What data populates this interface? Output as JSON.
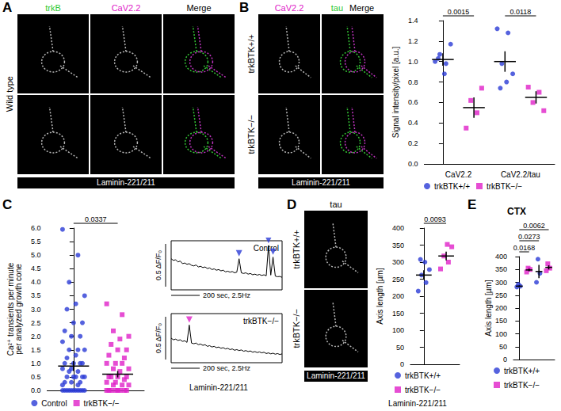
{
  "panels": {
    "A": {
      "letter": "A",
      "row_label": "Wild type",
      "headers": [
        {
          "text": "trkB",
          "color": "#2fc92f",
          "column": 0
        },
        {
          "text": "CaV2.2",
          "color": "#e020c8",
          "column": 1
        },
        {
          "text": "Merge",
          "color": "#000000",
          "column": 2
        }
      ],
      "substrate": "Laminin-221/211"
    },
    "B": {
      "letter": "B",
      "row_labels": [
        "trkBTK+/+",
        "trkBTK−/−"
      ],
      "headers": [
        {
          "text": "CaV2.2",
          "color": "#e020c8",
          "column": 0
        },
        {
          "text": "tau",
          "color": "#2fc92f",
          "column": 1
        },
        {
          "text": "Merge",
          "color": "#000000",
          "column": 1
        }
      ],
      "substrate": "Laminin-221/211"
    },
    "C": {
      "letter": "C",
      "substrate": "Laminin-221/211"
    },
    "D": {
      "letter": "D",
      "row_labels": [
        "trkBTK+/+",
        "trkBTK−/−"
      ],
      "headers": [
        {
          "text": "tau",
          "color": "#000000",
          "column": 0
        }
      ],
      "substrate": "Laminin-221/211",
      "chart_substrate": "Laminin-221/211"
    },
    "E": {
      "letter": "E"
    }
  },
  "chart_data": [
    {
      "type": "dot",
      "categories": [
        "CaV2.2",
        "CaV2.2/tau"
      ],
      "ylabel": "Signal intensity/pixel [a.u.]",
      "ylim": [
        0,
        1.4
      ],
      "yticks": [
        {
          "value": 0,
          "label": "0.0"
        },
        0.2,
        0.4,
        0.6,
        0.8,
        {
          "value": 1,
          "label": "1.0"
        },
        1.2,
        1.4
      ],
      "legend": "bottom",
      "series": [
        {
          "name": "trkBTK+/+",
          "color": "#2b3bd6",
          "marker": "circle",
          "values": [
            [
              1.0,
              0.98,
              1.07,
              1.17,
              0.88,
              1.03
            ],
            [
              1.32,
              1.28,
              0.98,
              0.88,
              0.8,
              0.74
            ]
          ],
          "mean": [
            1.02,
            1.0
          ],
          "error": [
            0.06,
            0.1
          ]
        },
        {
          "name": "trkBTK−/−",
          "color": "#e020c8",
          "marker": "square",
          "values": [
            [
              0.35,
              0.5,
              0.62,
              0.74
            ],
            [
              0.75,
              0.7,
              0.6,
              0.52
            ]
          ],
          "mean": [
            0.55,
            0.65
          ],
          "error": [
            0.1,
            0.06
          ]
        }
      ],
      "annotations": [
        {
          "text": "0.0015",
          "from": 0,
          "to": 1
        },
        {
          "text": "0.0118",
          "from": 2,
          "to": 3
        }
      ]
    },
    {
      "type": "dot",
      "categories": [
        null
      ],
      "ylabel": [
        "Ca²⁺ transients per minute",
        "per analyzed growth cone"
      ],
      "ylim": [
        0,
        6
      ],
      "yticks": [
        {
          "value": 0,
          "label": "0.0"
        },
        0.5,
        {
          "value": 1,
          "label": "1.0"
        },
        1.5,
        {
          "value": 2,
          "label": "2.0"
        },
        2.5,
        {
          "value": 3,
          "label": "3.0"
        },
        3.5,
        {
          "value": 4,
          "label": "4.0"
        },
        4.5,
        {
          "value": 5,
          "label": "5.0"
        },
        5.5,
        {
          "value": 6,
          "label": "6.0"
        }
      ],
      "tick_labels": "y",
      "legend": "bottom",
      "series": [
        {
          "name": "Control",
          "color": "#2b3bd6",
          "marker": "circle",
          "values": [
            [
              5.95,
              5.0,
              4.0,
              3.5,
              3.2,
              3.0,
              2.5,
              2.5,
              2.2,
              2.0,
              2.0,
              1.8,
              1.5,
              1.5,
              1.5,
              1.3,
              1.2,
              1.0,
              1.0,
              1.0,
              1.0,
              0.8,
              0.8,
              0.7,
              0.7,
              0.5,
              0.5,
              0.5,
              0.5,
              0.5,
              0.3,
              0.3,
              0.3,
              0.2,
              0.2,
              0,
              0,
              0,
              0,
              0,
              0,
              0,
              0,
              0,
              0,
              0
            ]
          ],
          "mean": [
            0.9
          ],
          "error": [
            0.18
          ]
        },
        {
          "name": "trkBTK−/−",
          "color": "#e020c8",
          "marker": "square",
          "values": [
            [
              3.2,
              2.8,
              2.2,
              2.0,
              1.9,
              1.7,
              1.5,
              1.5,
              1.3,
              1.2,
              1.0,
              1.0,
              1.0,
              0.8,
              0.8,
              0.7,
              0.5,
              0.5,
              0.5,
              0.5,
              0.4,
              0.3,
              0.3,
              0.2,
              0.2,
              0.2,
              0,
              0,
              0,
              0,
              0,
              0,
              0,
              0
            ]
          ],
          "mean": [
            0.6
          ],
          "error": [
            0.12
          ]
        }
      ],
      "annotations": [
        {
          "text": "0.0337",
          "from": 0,
          "to": 1
        }
      ]
    },
    {
      "type": "line",
      "tick_labels": false,
      "grid": false,
      "ylim": [
        0.6,
        2.1
      ],
      "scalebar_y": "0.5 ΔF/F₀",
      "scalebar_x": "200 sec, 2.5Hz",
      "series": [
        {
          "name": "Control",
          "color": "#000000",
          "values": [
            1.55,
            1.5,
            1.52,
            1.45,
            1.48,
            1.4,
            1.42,
            1.38,
            1.4,
            1.35,
            1.33,
            1.36,
            1.3,
            1.32,
            1.28,
            1.3,
            1.25,
            1.27,
            1.22,
            1.24,
            1.2,
            1.22,
            1.18,
            1.2,
            1.15,
            1.17,
            1.14,
            1.16,
            1.12,
            1.14,
            1.55,
            1.12,
            1.1,
            1.12,
            1.08,
            1.1,
            1.06,
            1.08,
            1.05,
            1.07,
            1.04,
            1.06,
            1.03,
            1.95,
            1.05,
            1.6,
            1.02,
            1.0,
            1.01,
            0.98
          ],
          "peaks": {
            "x": [
              30,
              43,
              45
            ],
            "color": "#2b3bd6"
          }
        },
        {
          "name": "trkBTK−/−",
          "color": "#000000",
          "values": [
            1.35,
            1.3,
            1.32,
            1.28,
            1.3,
            1.25,
            1.27,
            1.22,
            1.75,
            1.2,
            1.18,
            1.2,
            1.15,
            1.17,
            1.13,
            1.15,
            1.1,
            1.12,
            1.08,
            1.1,
            1.06,
            1.08,
            1.04,
            1.06,
            1.02,
            1.04,
            1.0,
            1.02,
            0.98,
            1.0,
            0.97,
            0.99,
            0.95,
            0.97,
            0.94,
            0.96,
            0.92,
            0.94,
            0.91,
            0.93,
            0.9,
            0.92,
            0.88,
            0.9,
            0.87,
            0.89,
            0.86,
            0.88,
            0.85,
            0.87
          ],
          "peaks": {
            "x": [
              8
            ],
            "color": "#e020c8"
          }
        }
      ]
    },
    {
      "type": "dot",
      "categories": [
        null
      ],
      "ylabel": "Axis length [µm]",
      "ylim": [
        0,
        400
      ],
      "yticks": [
        0,
        50,
        100,
        150,
        200,
        250,
        300,
        350,
        400
      ],
      "tick_labels": "y",
      "legend": "bottom",
      "series": [
        {
          "name": "trkBTK+/+",
          "color": "#2b3bd6",
          "marker": "circle",
          "values": [
            [
              215,
              240,
              262,
              278,
              300,
              308
            ]
          ],
          "mean": [
            262
          ],
          "error": [
            14
          ]
        },
        {
          "name": "trkBTK−/−",
          "color": "#e020c8",
          "marker": "square",
          "values": [
            [
              280,
              300,
              318,
              345,
              352
            ]
          ],
          "mean": [
            318
          ],
          "error": [
            13
          ]
        }
      ],
      "annotations": [
        {
          "text": "0.0093",
          "from": 0,
          "to": 1
        }
      ]
    },
    {
      "type": "dot",
      "title": "CTX",
      "categories": [
        null,
        null
      ],
      "ylabel": "Axis length [µm]",
      "ylim": [
        0,
        400
      ],
      "yticks": [
        0,
        50,
        100,
        150,
        200,
        250,
        300,
        350,
        400
      ],
      "tick_labels": "y",
      "legend": "bottom",
      "series": [
        {
          "name": "trkBTK+/+",
          "color": "#2b3bd6",
          "marker": "circle",
          "values": [
            [
              282,
              285,
              292
            ],
            [
              300,
              335,
              390
            ]
          ],
          "mean": [
            285,
            342
          ],
          "error": [
            3,
            26
          ]
        },
        {
          "name": "trkBTK−/−",
          "color": "#e020c8",
          "marker": "square",
          "values": [
            [
              340,
              350,
              355
            ],
            [
              345,
              355,
              372
            ]
          ],
          "mean": [
            348,
            358
          ],
          "error": [
            5,
            8
          ]
        }
      ],
      "annotations": [
        {
          "text": "0.0168",
          "from": 0,
          "to": 1
        },
        {
          "text": "0.0273",
          "from": 0,
          "to": 2
        },
        {
          "text": "0.0062",
          "from": 0,
          "to": 3
        }
      ]
    }
  ]
}
